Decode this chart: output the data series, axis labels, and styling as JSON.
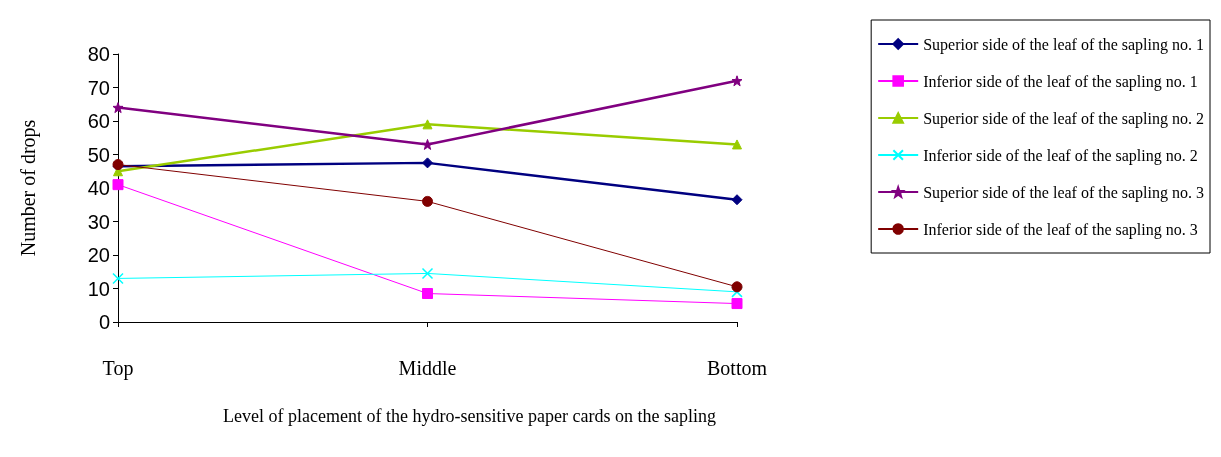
{
  "chart_data": {
    "type": "line",
    "xlabel": "Level of placement of the hydro-sensitive paper cards on the sapling",
    "ylabel": "Number of drops",
    "categories": [
      "Top",
      "Middle",
      "Bottom"
    ],
    "ylim": [
      0,
      80
    ],
    "yticks": [
      0,
      10,
      20,
      30,
      40,
      50,
      60,
      70,
      80
    ],
    "grid": false,
    "legend": "right",
    "series": [
      {
        "name": "Superior side of the leaf of the sapling no. 1",
        "color": "#000080",
        "marker": "diamond",
        "values": [
          46.5,
          47.5,
          36.5
        ]
      },
      {
        "name": "Inferior side of the leaf of the sapling no. 1",
        "color": "#ff00ff",
        "marker": "square",
        "values": [
          41,
          8.5,
          5.5
        ]
      },
      {
        "name": "Superior side of the leaf of the sapling no. 2",
        "color": "#99cc00",
        "marker": "triangle",
        "values": [
          45,
          59,
          53
        ]
      },
      {
        "name": "Inferior side of the leaf of the sapling no. 2",
        "color": "#00ffff",
        "marker": "cross",
        "values": [
          13,
          14.5,
          9
        ]
      },
      {
        "name": "Superior side of the leaf of the sapling no. 3",
        "color": "#800080",
        "marker": "star",
        "values": [
          64,
          53,
          72
        ]
      },
      {
        "name": "Inferior side of the leaf of the sapling no. 3",
        "color": "#800000",
        "marker": "circle",
        "values": [
          47,
          36,
          10.5
        ]
      }
    ]
  }
}
